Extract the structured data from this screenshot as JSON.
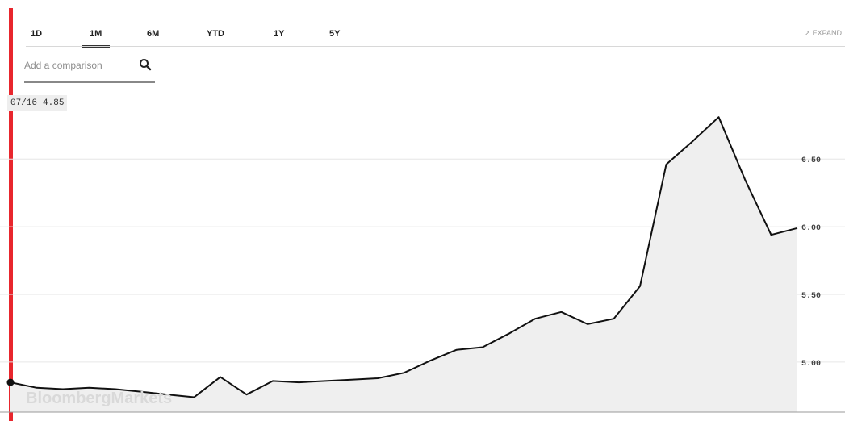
{
  "tabs": [
    {
      "label": "1D",
      "active": false
    },
    {
      "label": "1M",
      "active": true
    },
    {
      "label": "6M",
      "active": false
    },
    {
      "label": "YTD",
      "active": false
    },
    {
      "label": "1Y",
      "active": false
    },
    {
      "label": "5Y",
      "active": false
    }
  ],
  "expand_label": "↗ EXPAND",
  "comparison": {
    "placeholder": "Add a comparison",
    "value": ""
  },
  "readout": {
    "date": "07/16",
    "value": "4.85"
  },
  "watermark": "BloombergMarkets",
  "colors": {
    "line": "#111111",
    "fill": "#efefef",
    "cursor": "#e8262d",
    "grid": "#e6e6e6"
  },
  "icons": {
    "search": "search-icon",
    "expand": "expand-icon"
  },
  "chart_data": {
    "type": "area",
    "x": [
      1,
      2,
      3,
      4,
      5,
      6,
      7,
      8,
      9,
      10,
      11,
      12,
      13,
      14,
      15,
      16,
      17,
      18,
      19,
      20,
      21,
      22,
      23,
      24,
      25,
      26,
      27,
      28,
      29,
      30,
      31
    ],
    "values": [
      4.85,
      4.81,
      4.8,
      4.81,
      4.8,
      4.78,
      4.76,
      4.74,
      4.89,
      4.76,
      4.86,
      4.85,
      4.86,
      4.87,
      4.88,
      4.92,
      5.01,
      5.09,
      5.11,
      5.21,
      5.32,
      5.37,
      5.28,
      5.32,
      5.56,
      6.46,
      6.63,
      6.81,
      6.35,
      5.94,
      5.99
    ],
    "yticks": [
      "5.00",
      "5.50",
      "6.00",
      "6.50"
    ],
    "ylim": [
      4.63,
      6.96
    ],
    "grid": true,
    "legend": "none"
  }
}
